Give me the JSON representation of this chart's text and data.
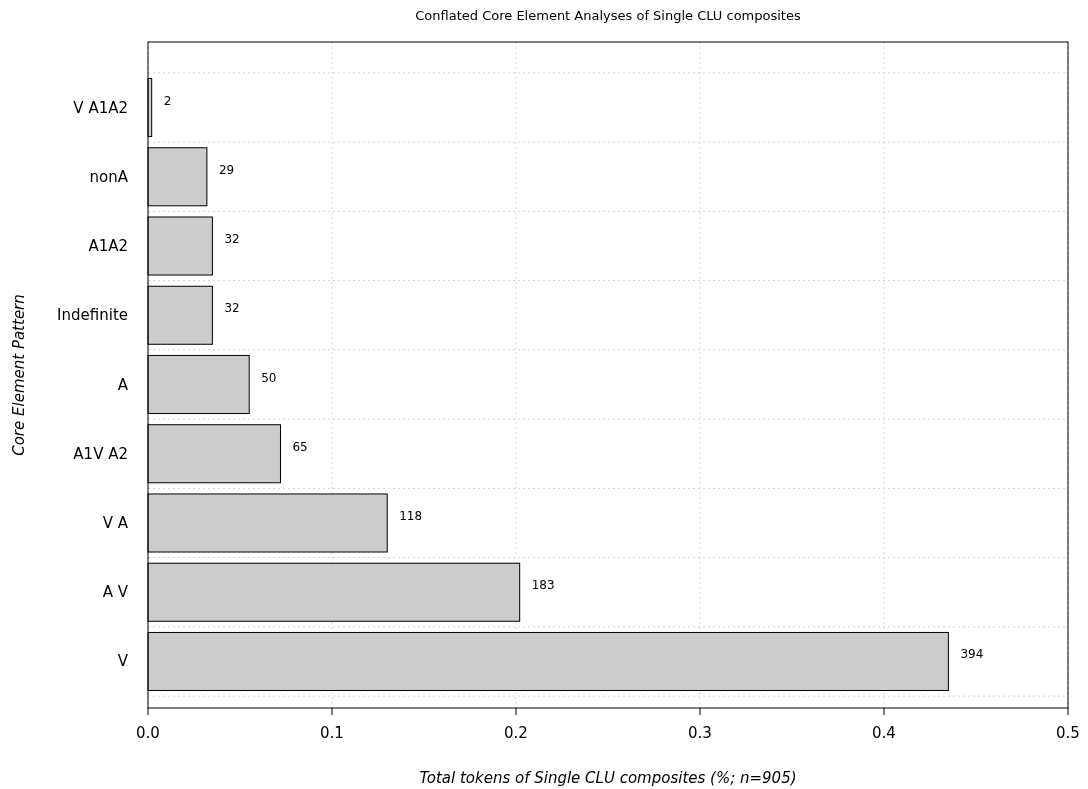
{
  "chart_data": {
    "type": "bar",
    "orientation": "horizontal",
    "title": "Conflated Core Element Analyses of Single CLU composites",
    "xlabel": "Total tokens of Single CLU composites (%; n=905)",
    "ylabel": "Core Element Pattern",
    "categories": [
      "V A1A2",
      "nonA",
      "A1A2",
      "Indefinite",
      "A",
      "A1V A2",
      "V A",
      "A V",
      "V"
    ],
    "values": [
      0.002,
      0.032,
      0.035,
      0.035,
      0.055,
      0.072,
      0.13,
      0.202,
      0.435
    ],
    "annotations": [
      {
        "text": "2",
        "x": 0.002,
        "y": "V A1A2"
      },
      {
        "text": "29",
        "x": 0.032,
        "y": "nonA"
      },
      {
        "text": "32",
        "x": 0.035,
        "y": "A1A2"
      },
      {
        "text": "32",
        "x": 0.035,
        "y": "Indefinite"
      },
      {
        "text": "50",
        "x": 0.055,
        "y": "A"
      },
      {
        "text": "65",
        "x": 0.072,
        "y": "A1V A2"
      },
      {
        "text": "118",
        "x": 0.13,
        "y": "V A"
      },
      {
        "text": "183",
        "x": 0.202,
        "y": "A V"
      },
      {
        "text": "394",
        "x": 0.435,
        "y": "V"
      }
    ],
    "color": "#cccccc",
    "xlim": [
      0,
      0.5
    ],
    "xticks": [
      {
        "value": 0,
        "label": "0.0"
      },
      0.1,
      0.2,
      0.3,
      0.4,
      0.5
    ],
    "grid": true
  }
}
